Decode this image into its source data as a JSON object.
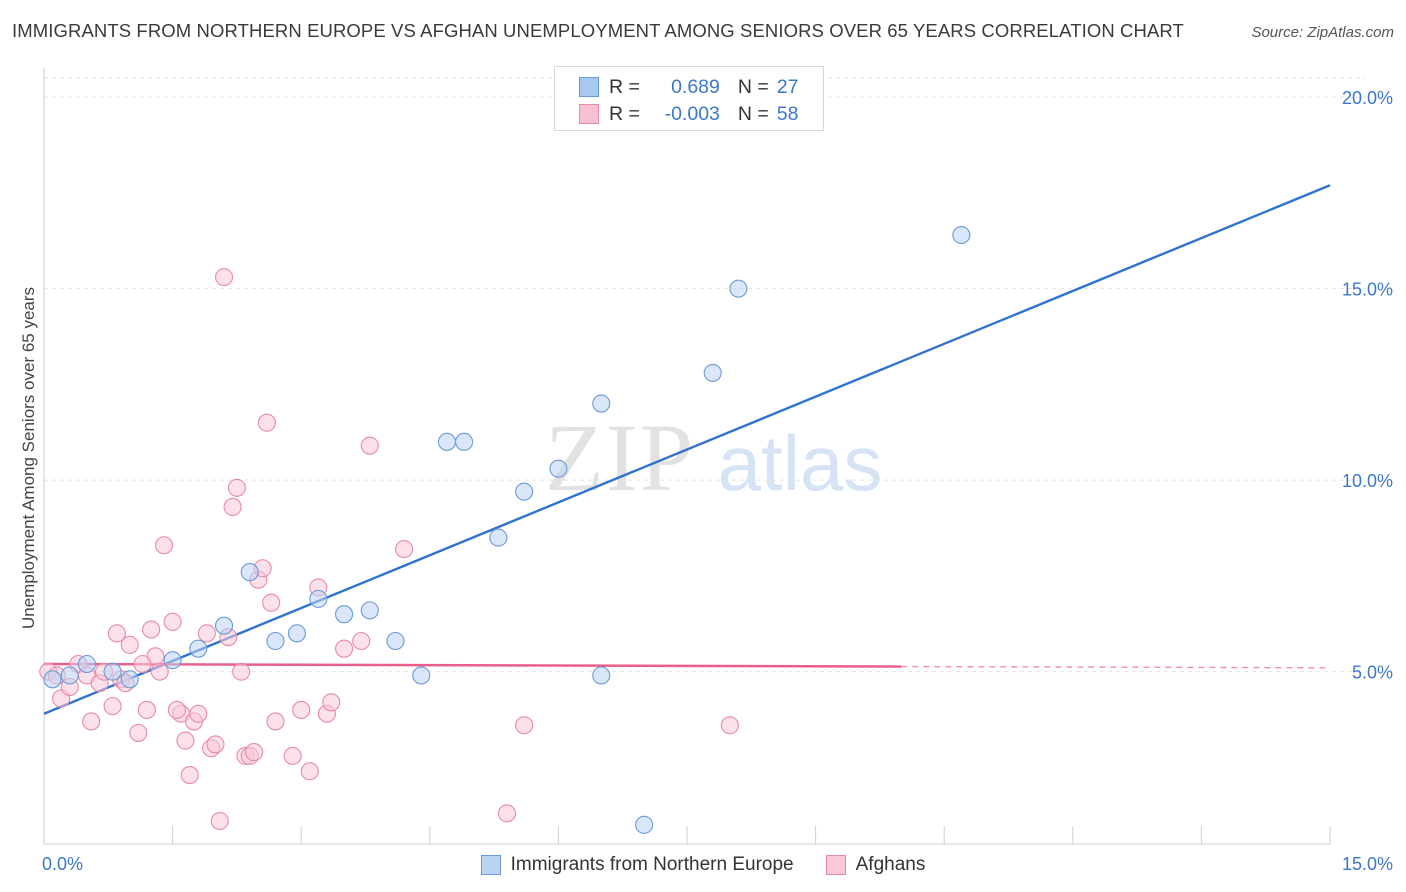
{
  "header": {
    "title": "IMMIGRANTS FROM NORTHERN EUROPE VS AFGHAN UNEMPLOYMENT AMONG SENIORS OVER 65 YEARS CORRELATION CHART",
    "source": "Source: ZipAtlas.com"
  },
  "watermark": {
    "zip": "ZIP",
    "atlas": "atlas"
  },
  "legend_top": {
    "rows": [
      {
        "r_label": "R =",
        "r_value": "0.689",
        "n_label": "N =",
        "n_value": "27",
        "color": "#a9c8f0",
        "border": "#6a9ad8"
      },
      {
        "r_label": "R =",
        "r_value": "-0.003",
        "n_label": "N =",
        "n_value": "58",
        "color": "#f8c0d3",
        "border": "#e88aa9"
      }
    ]
  },
  "legend_bottom": {
    "items": [
      {
        "label": "Immigrants from Northern Europe",
        "color": "#b9d3f3",
        "border": "#6a9ad8"
      },
      {
        "label": "Afghans",
        "color": "#fac8d8",
        "border": "#e88aa9"
      }
    ]
  },
  "chart_data": {
    "type": "scatter",
    "xlabel": "",
    "ylabel": "Unemployment Among Seniors over 65 years",
    "xlim": [
      0,
      15
    ],
    "ylim": [
      0.5,
      20.5
    ],
    "x_tick_labels": [
      "0.0%",
      "15.0%"
    ],
    "y_ticks": [
      5,
      10,
      15,
      20
    ],
    "y_tick_labels": [
      "5.0%",
      "10.0%",
      "15.0%",
      "20.0%"
    ],
    "grid": true,
    "legend": "top-center",
    "series": [
      {
        "name": "Immigrants from Northern Europe",
        "color": "#6a9ad8",
        "fill": "#b9d3f3",
        "trend_color": "#2f72d0",
        "r": 0.689,
        "n": 27,
        "trend": {
          "x": [
            0,
            15
          ],
          "y": [
            3.9,
            17.7
          ]
        },
        "points": [
          [
            0.1,
            4.8
          ],
          [
            0.3,
            4.9
          ],
          [
            0.5,
            5.2
          ],
          [
            0.8,
            5.0
          ],
          [
            1.0,
            4.8
          ],
          [
            1.5,
            5.3
          ],
          [
            1.8,
            5.6
          ],
          [
            2.1,
            6.2
          ],
          [
            2.4,
            7.6
          ],
          [
            2.7,
            5.8
          ],
          [
            2.95,
            6.0
          ],
          [
            3.2,
            6.9
          ],
          [
            3.5,
            6.5
          ],
          [
            3.8,
            6.6
          ],
          [
            4.1,
            5.8
          ],
          [
            4.4,
            4.9
          ],
          [
            4.7,
            11.0
          ],
          [
            4.9,
            11.0
          ],
          [
            5.3,
            8.5
          ],
          [
            5.6,
            9.7
          ],
          [
            6.0,
            10.3
          ],
          [
            6.5,
            12.0
          ],
          [
            6.5,
            4.9
          ],
          [
            7.0,
            1.0
          ],
          [
            7.8,
            12.8
          ],
          [
            8.1,
            15.0
          ],
          [
            10.7,
            16.4
          ]
        ]
      },
      {
        "name": "Afghans",
        "color": "#e88aa9",
        "fill": "#fac8d8",
        "trend_color": "#e8608a",
        "r": -0.003,
        "n": 58,
        "trend": {
          "x": [
            0,
            15
          ],
          "y": [
            5.2,
            5.1
          ],
          "solid_until": 10
        },
        "points": [
          [
            0.05,
            5.0
          ],
          [
            0.15,
            4.9
          ],
          [
            0.2,
            4.3
          ],
          [
            0.3,
            4.6
          ],
          [
            0.4,
            5.2
          ],
          [
            0.5,
            4.9
          ],
          [
            0.55,
            3.7
          ],
          [
            0.65,
            4.7
          ],
          [
            0.7,
            5.0
          ],
          [
            0.8,
            4.1
          ],
          [
            0.85,
            6.0
          ],
          [
            0.9,
            4.8
          ],
          [
            1.0,
            5.7
          ],
          [
            1.1,
            3.4
          ],
          [
            1.2,
            4.0
          ],
          [
            1.25,
            6.1
          ],
          [
            1.3,
            5.4
          ],
          [
            1.35,
            5.0
          ],
          [
            1.4,
            8.3
          ],
          [
            1.5,
            6.3
          ],
          [
            1.6,
            3.9
          ],
          [
            1.65,
            3.2
          ],
          [
            1.7,
            2.3
          ],
          [
            1.75,
            3.7
          ],
          [
            1.8,
            3.9
          ],
          [
            1.9,
            6.0
          ],
          [
            1.95,
            3.0
          ],
          [
            2.0,
            3.1
          ],
          [
            2.05,
            1.1
          ],
          [
            2.1,
            15.3
          ],
          [
            2.15,
            5.9
          ],
          [
            2.2,
            9.3
          ],
          [
            2.25,
            9.8
          ],
          [
            2.3,
            5.0
          ],
          [
            2.35,
            2.8
          ],
          [
            2.4,
            2.8
          ],
          [
            2.45,
            2.9
          ],
          [
            2.5,
            7.4
          ],
          [
            2.55,
            7.7
          ],
          [
            2.6,
            11.5
          ],
          [
            2.7,
            3.7
          ],
          [
            2.9,
            2.8
          ],
          [
            3.0,
            4.0
          ],
          [
            3.1,
            2.4
          ],
          [
            3.2,
            7.2
          ],
          [
            3.3,
            3.9
          ],
          [
            3.35,
            4.2
          ],
          [
            3.5,
            5.6
          ],
          [
            3.7,
            5.8
          ],
          [
            3.8,
            10.9
          ],
          [
            4.2,
            8.2
          ],
          [
            5.4,
            1.3
          ],
          [
            5.6,
            3.6
          ],
          [
            8.0,
            3.6
          ],
          [
            1.55,
            4.0
          ],
          [
            0.95,
            4.7
          ],
          [
            2.65,
            6.8
          ],
          [
            1.15,
            5.2
          ]
        ]
      }
    ]
  }
}
